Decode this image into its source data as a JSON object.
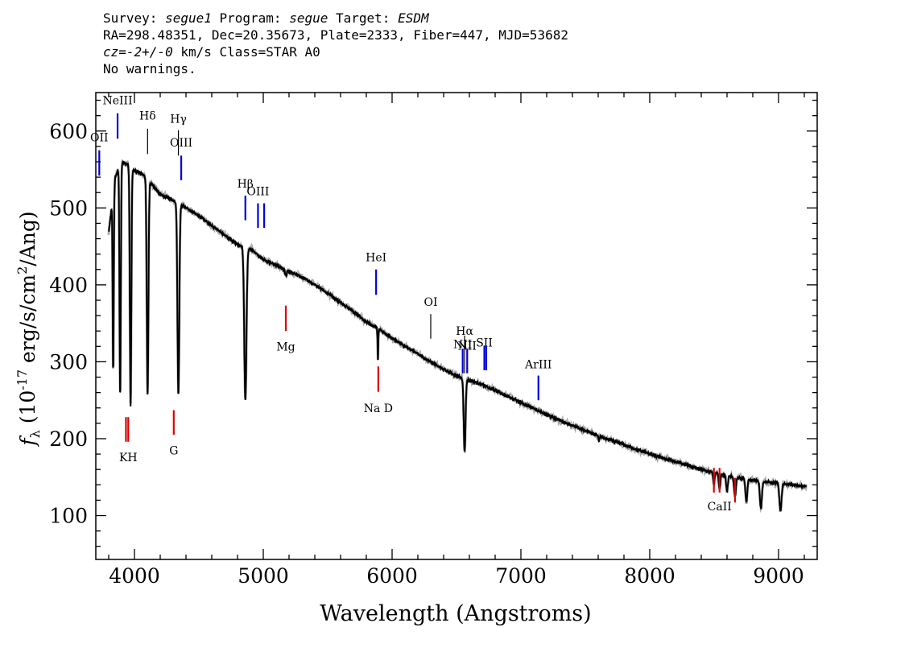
{
  "header": {
    "line1_parts": [
      "Survey: ",
      "segue1",
      " Program: ",
      "segue",
      " Target: ",
      "ESDM"
    ],
    "line2": "RA=298.48351, Dec=20.35673, Plate=2333, Fiber=447, MJD=53682",
    "line3_parts": [
      "cz=-2+/-0",
      " km/s Class=STAR A0"
    ],
    "line4": "No warnings."
  },
  "chart_data": {
    "type": "line",
    "title": "",
    "xlabel": "Wavelength (Angstroms)",
    "ylabel": "f_λ (10^-17 erg/s/cm^2/Ang)",
    "xlim": [
      3700,
      9300
    ],
    "ylim": [
      43,
      650
    ],
    "xticks": [
      4000,
      5000,
      6000,
      7000,
      8000,
      9000
    ],
    "yticks": [
      100,
      200,
      300,
      400,
      500,
      600
    ],
    "series": [
      {
        "color": "#000000",
        "continuum": [
          [
            3800,
            468
          ],
          [
            3850,
            540
          ],
          [
            3900,
            560
          ],
          [
            3950,
            556
          ],
          [
            4000,
            548
          ],
          [
            4050,
            545
          ],
          [
            4100,
            538
          ],
          [
            4150,
            528
          ],
          [
            4200,
            518
          ],
          [
            4300,
            510
          ],
          [
            4400,
            500
          ],
          [
            4500,
            490
          ],
          [
            4600,
            477
          ],
          [
            4700,
            465
          ],
          [
            4800,
            452
          ],
          [
            4900,
            447
          ],
          [
            5000,
            433
          ],
          [
            5100,
            425
          ],
          [
            5200,
            418
          ],
          [
            5300,
            410
          ],
          [
            5400,
            400
          ],
          [
            5500,
            389
          ],
          [
            5600,
            377
          ],
          [
            5700,
            365
          ],
          [
            5800,
            352
          ],
          [
            5900,
            342
          ],
          [
            6000,
            331
          ],
          [
            6100,
            320
          ],
          [
            6200,
            310
          ],
          [
            6300,
            300
          ],
          [
            6400,
            290
          ],
          [
            6500,
            282
          ],
          [
            6600,
            276
          ],
          [
            6700,
            270
          ],
          [
            6800,
            263
          ],
          [
            6900,
            255
          ],
          [
            7000,
            247
          ],
          [
            7100,
            239
          ],
          [
            7200,
            231
          ],
          [
            7400,
            217
          ],
          [
            7600,
            204
          ],
          [
            7800,
            192
          ],
          [
            8000,
            180
          ],
          [
            8200,
            170
          ],
          [
            8400,
            160
          ],
          [
            8600,
            152
          ],
          [
            8800,
            146
          ],
          [
            9000,
            142
          ],
          [
            9100,
            140
          ],
          [
            9200,
            138
          ]
        ],
        "absorption_lines": [
          {
            "x": 3835,
            "depth": 230,
            "width": 6
          },
          {
            "x": 3889,
            "depth": 300,
            "width": 7
          },
          {
            "x": 3970,
            "depth": 310,
            "width": 8
          },
          {
            "x": 4102,
            "depth": 280,
            "width": 9
          },
          {
            "x": 4341,
            "depth": 250,
            "width": 10
          },
          {
            "x": 4861,
            "depth": 200,
            "width": 12
          },
          {
            "x": 5175,
            "depth": 8,
            "width": 10
          },
          {
            "x": 5890,
            "depth": 40,
            "width": 4
          },
          {
            "x": 6563,
            "depth": 95,
            "width": 10
          },
          {
            "x": 7605,
            "depth": 5,
            "width": 6
          },
          {
            "x": 8498,
            "depth": 15,
            "width": 8
          },
          {
            "x": 8542,
            "depth": 20,
            "width": 9
          },
          {
            "x": 8600,
            "depth": 20,
            "width": 9
          },
          {
            "x": 8662,
            "depth": 25,
            "width": 10
          },
          {
            "x": 8750,
            "depth": 30,
            "width": 10
          },
          {
            "x": 8863,
            "depth": 35,
            "width": 11
          },
          {
            "x": 9015,
            "depth": 35,
            "width": 12
          }
        ]
      }
    ],
    "line_markers": [
      {
        "label": "OII",
        "x": 3727,
        "y0": 542,
        "y1": 575,
        "color": "#0000dd",
        "label_y": 592
      },
      {
        "label": "NeIII",
        "x": 3869,
        "y0": 590,
        "y1": 623,
        "color": "#0000dd",
        "label_y": 640
      },
      {
        "label": "Hδ",
        "x": 4102,
        "y0": 570,
        "y1": 603,
        "color": "#000000",
        "label_y": 620
      },
      {
        "label": "Hγ",
        "x": 4341,
        "y0": 568,
        "y1": 601,
        "color": "#000000",
        "label_y": 616
      },
      {
        "label": "OIII",
        "x": 4363,
        "y0": 536,
        "y1": 568,
        "color": "#0000dd",
        "label_y": 585
      },
      {
        "label": "Hβ",
        "x": 4861,
        "y0": 484,
        "y1": 516,
        "color": "#0000dd",
        "label_y": 532
      },
      {
        "label": "OIII",
        "x": 4959,
        "y0": 474,
        "y1": 506,
        "color": "#0000dd",
        "label_y": 522
      },
      {
        "label": "",
        "x": 5007,
        "y0": 474,
        "y1": 506,
        "color": "#0000dd"
      },
      {
        "label": "Mg",
        "x": 5175,
        "y0": 340,
        "y1": 373,
        "color": "#dd0000",
        "label_y": 320
      },
      {
        "label": "HeI",
        "x": 5876,
        "y0": 387,
        "y1": 420,
        "color": "#0000dd",
        "label_y": 436
      },
      {
        "label": "Na D",
        "x": 5893,
        "y0": 261,
        "y1": 294,
        "color": "#dd0000",
        "label_y": 240
      },
      {
        "label": "OI",
        "x": 6300,
        "y0": 330,
        "y1": 362,
        "color": "#000000",
        "label_y": 378
      },
      {
        "label": "NII",
        "x": 6548,
        "y0": 285,
        "y1": 317,
        "color": "#0000dd",
        "label_y": 323
      },
      {
        "label": "Hα",
        "x": 6563,
        "y0": 285,
        "y1": 334,
        "color": "#000000",
        "label_y": 340
      },
      {
        "label": "NII",
        "x": 6583,
        "y0": 285,
        "y1": 317,
        "color": "#0000dd",
        "label_y": 321
      },
      {
        "label": "SII",
        "x": 6716,
        "y0": 289,
        "y1": 321,
        "color": "#0000dd",
        "label_y": 325
      },
      {
        "label": "",
        "x": 6731,
        "y0": 289,
        "y1": 321,
        "color": "#0000dd"
      },
      {
        "label": "ArIII",
        "x": 7136,
        "y0": 250,
        "y1": 282,
        "color": "#0000dd",
        "label_y": 297
      },
      {
        "label": "KH",
        "x": 3952,
        "y0": 196,
        "y1": 228,
        "color": "#dd0000",
        "label_y": 176
      },
      {
        "label": "",
        "x": 3934,
        "y0": 196,
        "y1": 228,
        "color": "#dd0000"
      },
      {
        "label": "G",
        "x": 4305,
        "y0": 205,
        "y1": 237,
        "color": "#dd0000",
        "label_y": 185
      },
      {
        "label": "CaII",
        "x": 8542,
        "y0": 130,
        "y1": 162,
        "color": "#dd0000",
        "label_y": 112
      },
      {
        "label": "",
        "x": 8498,
        "y0": 130,
        "y1": 162,
        "color": "#dd0000"
      },
      {
        "label": "",
        "x": 8662,
        "y0": 117,
        "y1": 149,
        "color": "#dd0000"
      }
    ]
  }
}
